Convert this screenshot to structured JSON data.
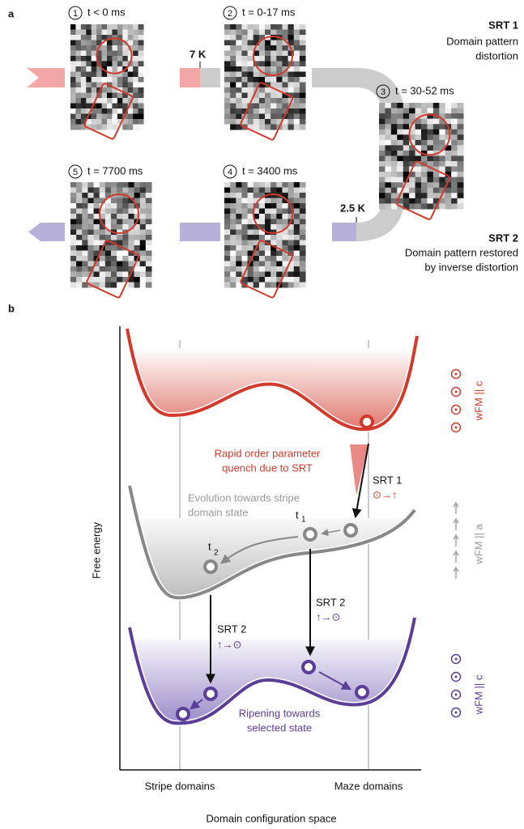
{
  "panel_a": {
    "label": "a",
    "frames": [
      {
        "step": "1",
        "time": "t < 0 ms"
      },
      {
        "step": "2",
        "time": "t  = 0-17 ms"
      },
      {
        "step": "3",
        "time": "t  = 30-52 ms"
      },
      {
        "step": "4",
        "time": "t  = 3400 ms"
      },
      {
        "step": "5",
        "time": "t  = 7700 ms"
      }
    ],
    "temperatures": [
      "7 K",
      "2.5 K"
    ],
    "srt1": {
      "title": "SRT 1",
      "lines": [
        "Domain pattern",
        "distortion"
      ]
    },
    "srt2": {
      "title": "SRT 2",
      "lines": [
        "Domain pattern restored",
        "by inverse distortion"
      ]
    }
  },
  "panel_b": {
    "label": "b",
    "y_axis": "Free energy",
    "x_axis": "Domain configuration space",
    "x_labels": [
      "Stripe domains",
      "Maze domains"
    ],
    "quench": [
      "Rapid order parameter",
      "quench due to SRT"
    ],
    "evolution": [
      "Evolution towards stripe",
      "domain state"
    ],
    "ripening": [
      "Ripening towards",
      "selected state"
    ],
    "srt1": {
      "title": "SRT 1",
      "symbol": "⊙→↑"
    },
    "srt2": [
      {
        "title": "SRT 2",
        "symbol": "↑→⊙"
      },
      {
        "title": "SRT 2",
        "symbol": "↑→⊙"
      }
    ],
    "times": [
      {
        "t": "t",
        "sub": "1"
      },
      {
        "t": "t",
        "sub": "2"
      }
    ],
    "states": [
      "wFM || c",
      "wFM || a",
      "wFM || c"
    ]
  }
}
